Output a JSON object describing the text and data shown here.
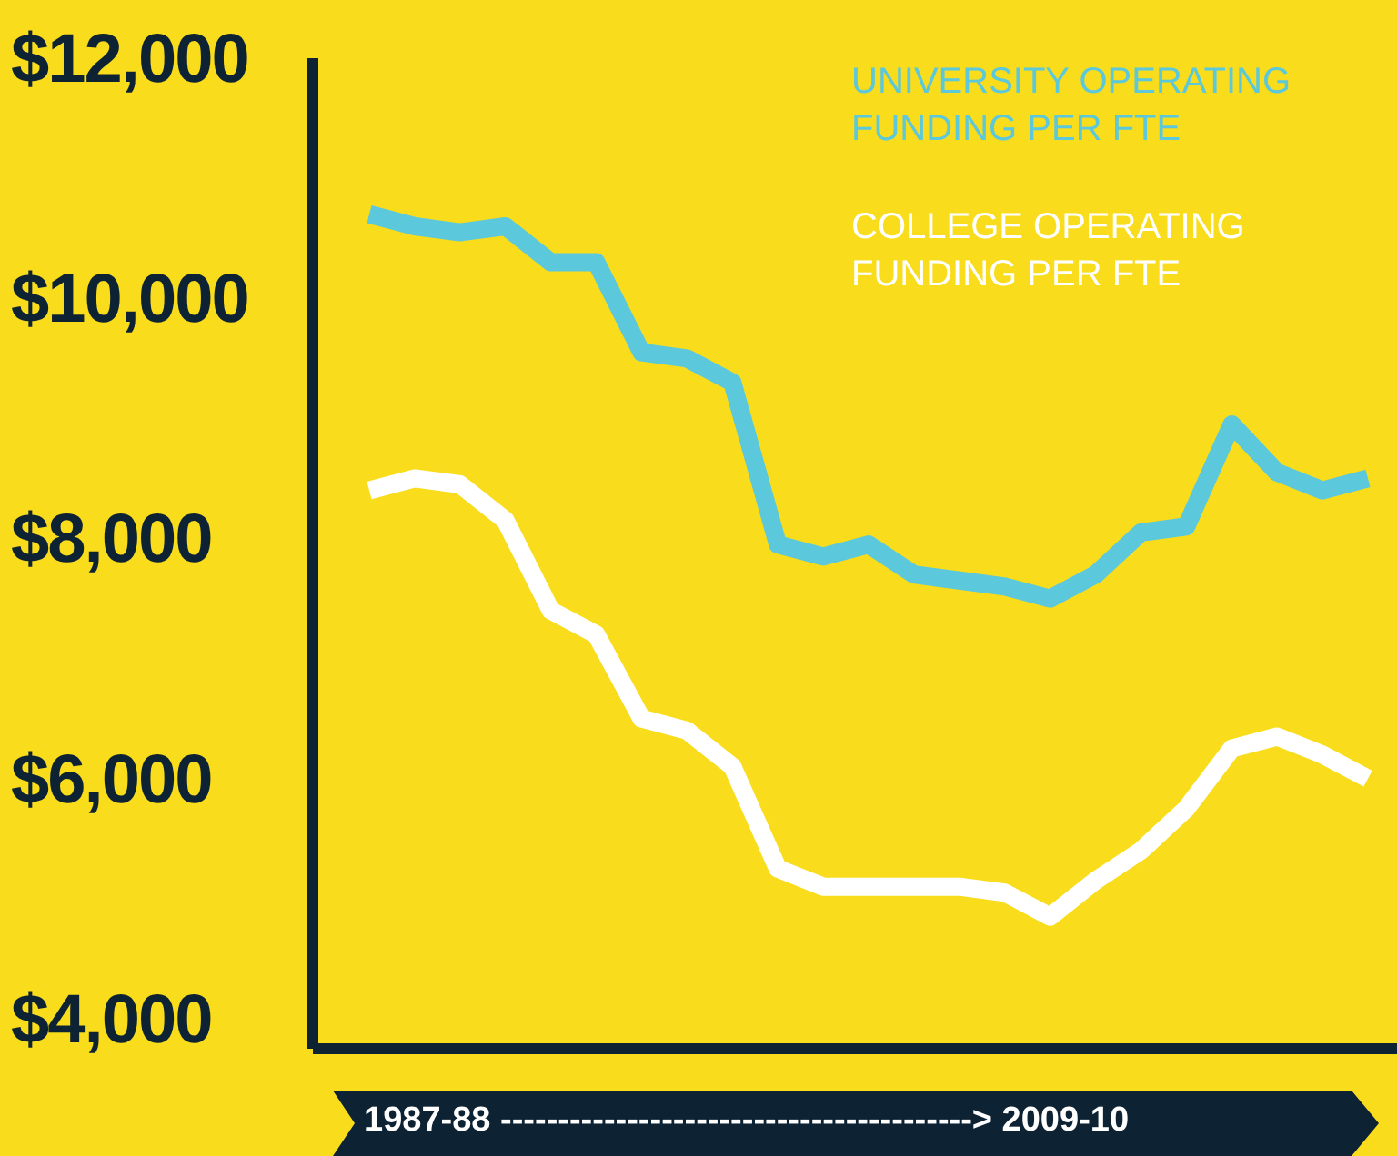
{
  "chart_data": {
    "type": "line",
    "xlabel": "1987-88 -----------------------------------------> 2009-10",
    "categories": [
      null,
      null,
      null,
      null,
      null,
      null,
      null,
      null,
      null,
      null,
      null,
      null,
      null,
      null,
      null,
      null,
      null,
      null,
      null,
      null,
      null,
      null,
      null
    ],
    "series": [
      {
        "name": "UNIVERSITY OPERATING FUNDING PER FTE",
        "color": "#5bc8dc",
        "values": [
          10700,
          10600,
          10550,
          10600,
          10300,
          10300,
          9550,
          9500,
          9300,
          7950,
          7850,
          7950,
          7700,
          7650,
          7600,
          7500,
          7700,
          8050,
          8100,
          8950,
          8550,
          8400,
          8500
        ]
      },
      {
        "name": "COLLEGE OPERATING FUNDING PER FTE",
        "color": "#ffffff",
        "values": [
          8400,
          8500,
          8450,
          8150,
          7400,
          7200,
          6500,
          6400,
          6100,
          5250,
          5100,
          5100,
          5100,
          5100,
          5050,
          4850,
          5150,
          5400,
          5750,
          6250,
          6350,
          6200,
          6000
        ]
      }
    ],
    "ylim": [
      3750,
      12000
    ],
    "yticks": [
      {
        "value": 4000,
        "label": "$4,000"
      },
      {
        "value": 6000,
        "label": "$6,000"
      },
      {
        "value": 8000,
        "label": "$8,000"
      },
      {
        "value": 10000,
        "label": "$10,000"
      },
      {
        "value": 12000,
        "label": "$12,000"
      }
    ],
    "tick_labels": "y",
    "legend": "top right",
    "grid": false,
    "marker": "none",
    "line_style": "solid"
  }
}
